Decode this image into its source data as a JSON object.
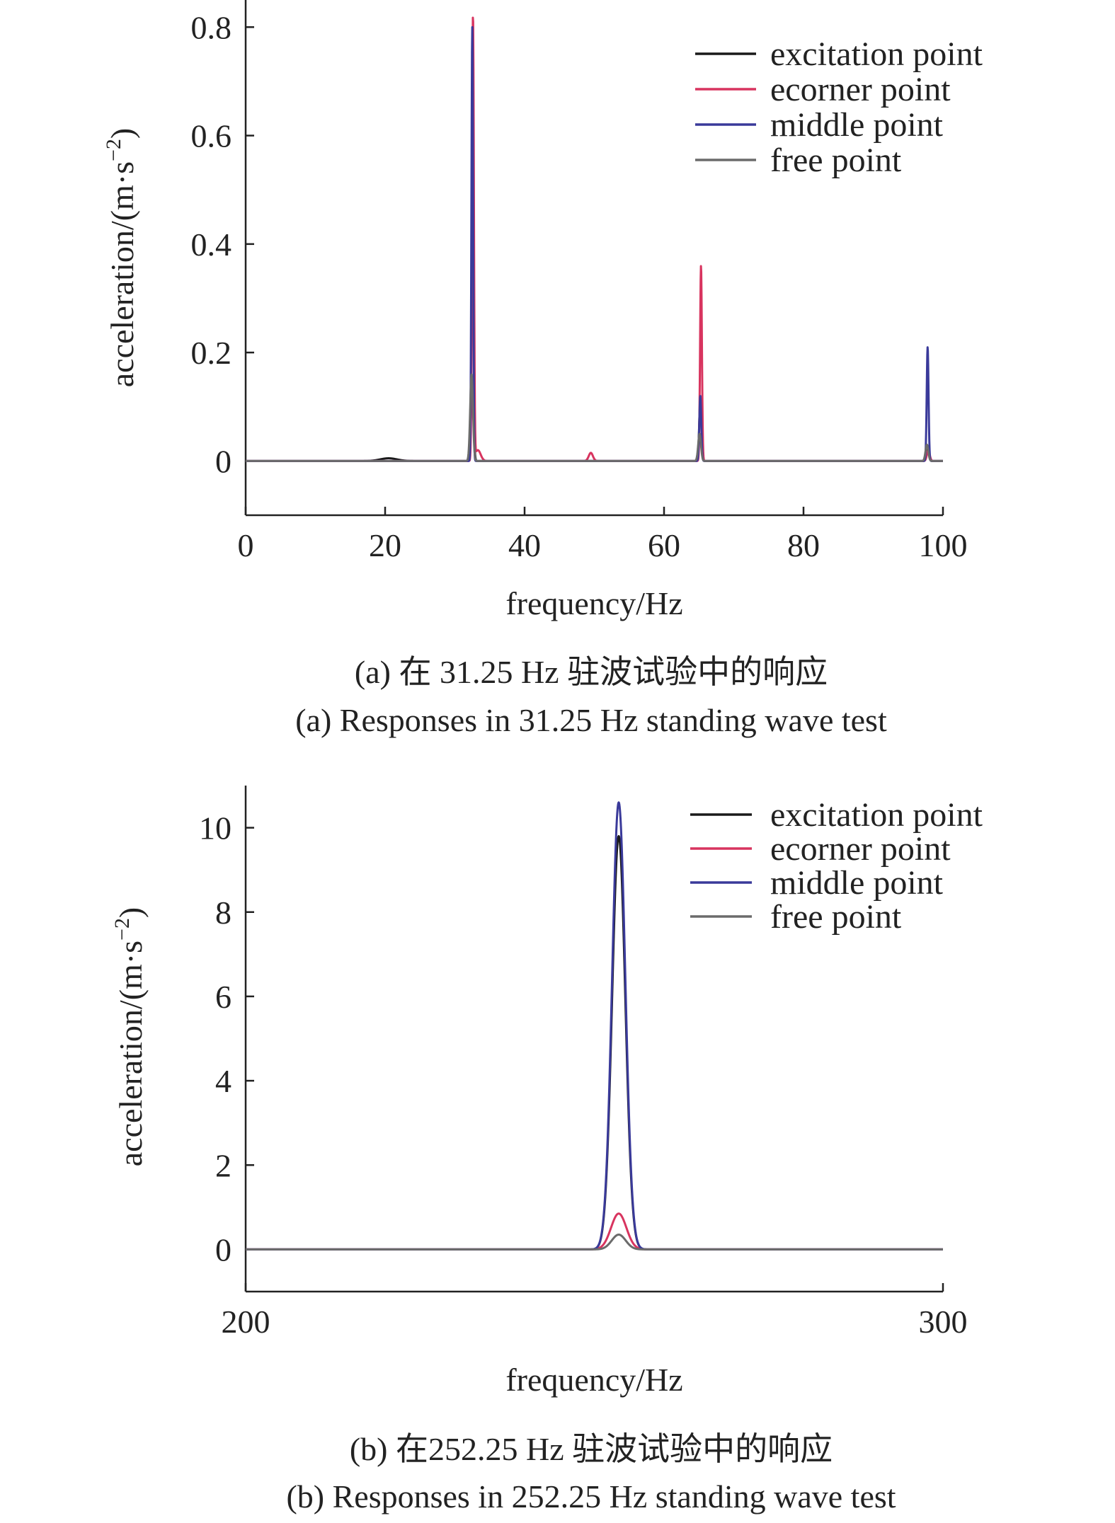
{
  "chart_data": [
    {
      "type": "line",
      "xlabel": "frequency/Hz",
      "ylabel_main": "acceleration/(m·s",
      "ylabel_exp": "−2",
      "ylabel_tail": ")",
      "xlim": [
        0,
        100
      ],
      "ylim": [
        -0.1,
        0.85
      ],
      "xticks": [
        0,
        20,
        40,
        60,
        80,
        100
      ],
      "yticks": [
        0,
        0.2,
        0.4,
        0.6,
        0.8
      ],
      "grid": false,
      "legend_position": "top-right",
      "caption_cn": "(a) 在 31.25 Hz 驻波试验中的响应",
      "caption_en": "(a) Responses in 31.25 Hz standing wave test",
      "series": [
        {
          "name": "excitation point",
          "color": "#1a1a1a",
          "peaks": [
            [
              32.5,
              0.15,
              0.18
            ],
            [
              65.2,
              0.11,
              0.16
            ],
            [
              97.8,
              0.02,
              0.2
            ],
            [
              20.5,
              0.005,
              1.2
            ]
          ]
        },
        {
          "name": "ecorner point",
          "color": "#d8345f",
          "peaks": [
            [
              32.6,
              0.82,
              0.13
            ],
            [
              65.3,
              0.36,
              0.13
            ],
            [
              97.9,
              0.02,
              0.2
            ],
            [
              49.5,
              0.015,
              0.3
            ],
            [
              33.3,
              0.02,
              0.4
            ]
          ]
        },
        {
          "name": "middle point",
          "color": "#3a3a9a",
          "peaks": [
            [
              32.5,
              0.8,
              0.12
            ],
            [
              65.2,
              0.12,
              0.14
            ],
            [
              97.8,
              0.21,
              0.13
            ]
          ]
        },
        {
          "name": "free point",
          "color": "#6b6b6b",
          "peaks": [
            [
              32.4,
              0.16,
              0.2
            ],
            [
              65.1,
              0.05,
              0.2
            ],
            [
              97.7,
              0.03,
              0.2
            ]
          ]
        }
      ]
    },
    {
      "type": "line",
      "xlabel": "frequency/Hz",
      "ylabel_main": "acceleration/(m·s",
      "ylabel_exp": "−2",
      "ylabel_tail": ")",
      "xlim": [
        200,
        300
      ],
      "ylim": [
        -1,
        11
      ],
      "xticks": [
        200,
        300
      ],
      "yticks": [
        0,
        2,
        4,
        6,
        8,
        10
      ],
      "grid": false,
      "legend_position": "top-right",
      "caption_cn": "(b) 在252.25 Hz 驻波试验中的响应",
      "caption_en": "(b) Responses in 252.25 Hz standing wave test",
      "series": [
        {
          "name": "excitation point",
          "color": "#1a1a1a",
          "peaks": [
            [
              253.5,
              9.8,
              0.95
            ]
          ]
        },
        {
          "name": "ecorner point",
          "color": "#d8345f",
          "peaks": [
            [
              253.5,
              0.85,
              1.1
            ]
          ]
        },
        {
          "name": "middle point",
          "color": "#3a3a9a",
          "peaks": [
            [
              253.5,
              10.6,
              0.95
            ]
          ]
        },
        {
          "name": "free point",
          "color": "#6b6b6b",
          "peaks": [
            [
              253.5,
              0.35,
              1.0
            ]
          ]
        }
      ]
    }
  ]
}
